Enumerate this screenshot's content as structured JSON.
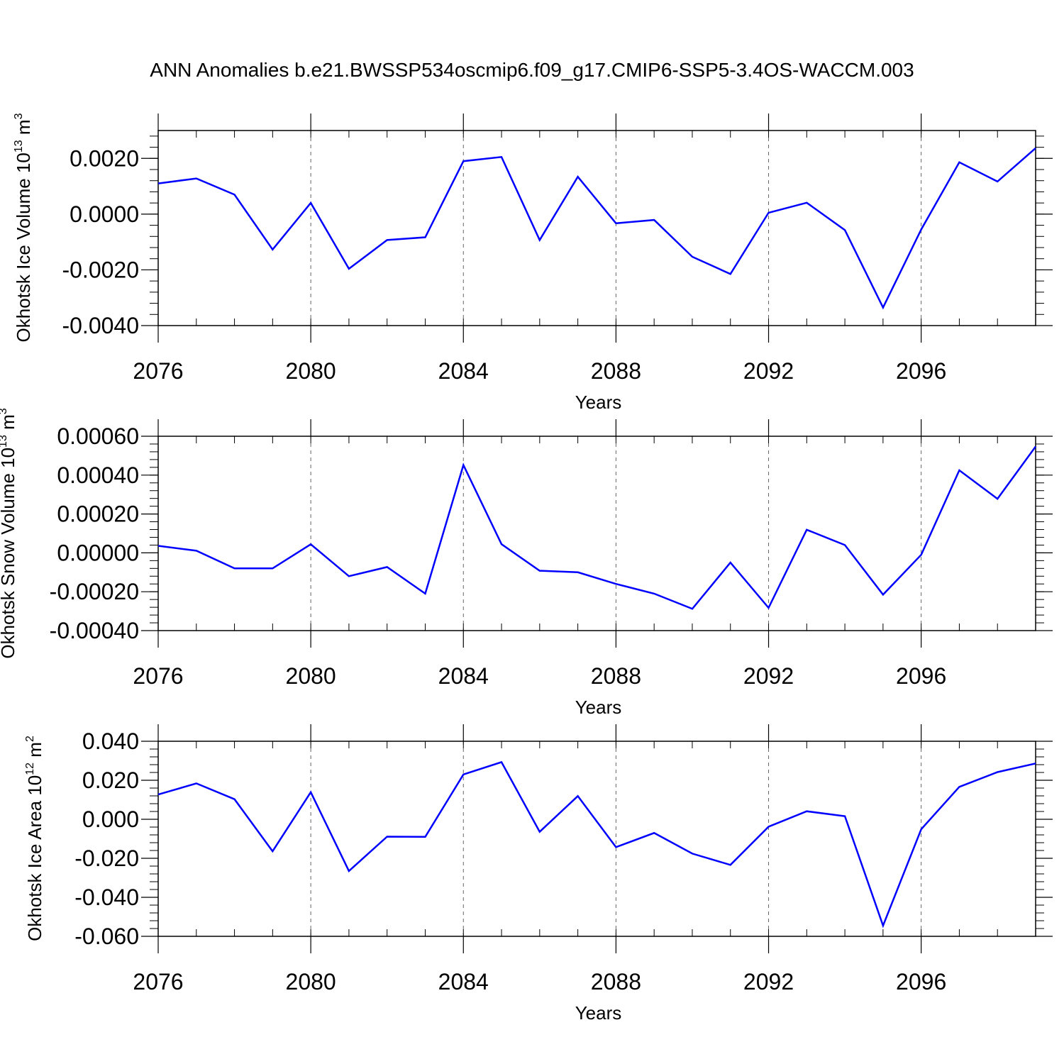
{
  "figure_title": "ANN Anomalies b.e21.BWSSP534oscmip6.f09_g17.CMIP6-SSP5-3.4OS-WACCM.003",
  "colors": {
    "line": "#0000ff",
    "axis": "#000000",
    "grid": "#666666"
  },
  "chart_data": [
    {
      "type": "line",
      "title": "ANN Anomalies b.e21.BWSSP534oscmip6.f09_g17.CMIP6-SSP5-3.4OS-WACCM.003",
      "ylabel": {
        "text": "Okhotsk Ice Volume 10",
        "exponent": "13",
        "unit": " m",
        "unit_exp": "3"
      },
      "xlabel": "Years",
      "xlim": [
        2076,
        2099
      ],
      "ylim": [
        -0.004,
        0.003
      ],
      "yticks": [
        -0.004,
        -0.002,
        0.0,
        0.002
      ],
      "ytick_labels": [
        "-0.0040",
        "-0.0020",
        "0.0000",
        "0.0020"
      ],
      "xticks": [
        2076,
        2080,
        2084,
        2088,
        2092,
        2096
      ],
      "xtick_labels": [
        "2076",
        "2080",
        "2084",
        "2088",
        "2092",
        "2096"
      ],
      "grid": "vertical dashed at major x ticks",
      "x": [
        2076,
        2077,
        2078,
        2079,
        2080,
        2081,
        2082,
        2083,
        2084,
        2085,
        2086,
        2087,
        2088,
        2089,
        2090,
        2091,
        2092,
        2093,
        2094,
        2095,
        2096,
        2097,
        2098,
        2099
      ],
      "y": [
        0.0011,
        0.00128,
        0.0007,
        -0.00127,
        0.0004,
        -0.00196,
        -0.00093,
        -0.00083,
        0.0019,
        0.00205,
        -0.00093,
        0.00134,
        -0.00033,
        -0.00021,
        -0.00153,
        -0.00215,
        5e-05,
        0.00041,
        -0.00057,
        -0.00335,
        -0.00055,
        0.00186,
        0.00117,
        0.00237
      ]
    },
    {
      "type": "line",
      "ylabel": {
        "text": "Okhotsk Snow Volume 10",
        "exponent": "13",
        "unit": " m",
        "unit_exp": "3"
      },
      "xlabel": "Years",
      "xlim": [
        2076,
        2099
      ],
      "ylim": [
        -0.0004,
        0.0006
      ],
      "yticks": [
        -0.0004,
        -0.0002,
        0.0,
        0.0002,
        0.0004,
        0.0006
      ],
      "ytick_labels": [
        "-0.00040",
        "-0.00020",
        "0.00000",
        "0.00020",
        "0.00040",
        "0.00060"
      ],
      "xticks": [
        2076,
        2080,
        2084,
        2088,
        2092,
        2096
      ],
      "xtick_labels": [
        "2076",
        "2080",
        "2084",
        "2088",
        "2092",
        "2096"
      ],
      "grid": "vertical dashed at major x ticks",
      "x": [
        2076,
        2077,
        2078,
        2079,
        2080,
        2081,
        2082,
        2083,
        2084,
        2085,
        2086,
        2087,
        2088,
        2089,
        2090,
        2091,
        2092,
        2093,
        2094,
        2095,
        2096,
        2097,
        2098,
        2099
      ],
      "y": [
        3.6e-05,
        1.1e-05,
        -8e-05,
        -8e-05,
        4.4e-05,
        -0.00012,
        -7.3e-05,
        -0.00021,
        0.000452,
        4.5e-05,
        -9.2e-05,
        -0.0001,
        -0.00016,
        -0.00021,
        -0.000288,
        -5e-05,
        -0.000283,
        0.000119,
        4e-05,
        -0.000215,
        -1e-05,
        0.000425,
        0.000278,
        0.000547
      ]
    },
    {
      "type": "line",
      "ylabel": {
        "text": "Okhotsk Ice Area 10",
        "exponent": "12",
        "unit": " m",
        "unit_exp": "2"
      },
      "xlabel": "Years",
      "xlim": [
        2076,
        2099
      ],
      "ylim": [
        -0.06,
        0.04
      ],
      "yticks": [
        -0.06,
        -0.04,
        -0.02,
        0.0,
        0.02,
        0.04
      ],
      "ytick_labels": [
        "-0.060",
        "-0.040",
        "-0.020",
        "0.000",
        "0.020",
        "0.040"
      ],
      "xticks": [
        2076,
        2080,
        2084,
        2088,
        2092,
        2096
      ],
      "xtick_labels": [
        "2076",
        "2080",
        "2084",
        "2088",
        "2092",
        "2096"
      ],
      "grid": "vertical dashed at major x ticks",
      "x": [
        2076,
        2077,
        2078,
        2079,
        2080,
        2081,
        2082,
        2083,
        2084,
        2085,
        2086,
        2087,
        2088,
        2089,
        2090,
        2091,
        2092,
        2093,
        2094,
        2095,
        2096,
        2097,
        2098,
        2099
      ],
      "y": [
        0.0127,
        0.0184,
        0.0103,
        -0.0164,
        0.0139,
        -0.0265,
        -0.0089,
        -0.009,
        0.023,
        0.0293,
        -0.0064,
        0.0119,
        -0.0143,
        -0.007,
        -0.0176,
        -0.0234,
        -0.0038,
        0.0041,
        0.0016,
        -0.0545,
        -0.0051,
        0.0166,
        0.0242,
        0.0286
      ]
    }
  ]
}
